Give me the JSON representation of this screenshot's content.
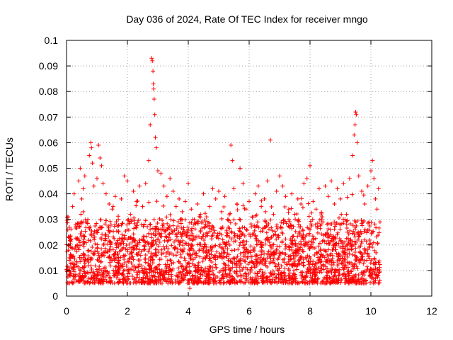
{
  "chart_data": {
    "type": "scatter",
    "title": "Day 036 of 2024, Rate Of TEC Index for receiver mngo",
    "xlabel": "GPS time / hours",
    "ylabel": "ROTI / TECUs",
    "xlim": [
      0,
      12
    ],
    "ylim": [
      0,
      0.1
    ],
    "x_ticks": [
      "0",
      "2",
      "4",
      "6",
      "8",
      "10",
      "12"
    ],
    "y_ticks": [
      "0",
      "0.01",
      "0.02",
      "0.03",
      "0.04",
      "0.05",
      "0.06",
      "0.07",
      "0.08",
      "0.09",
      "0.1"
    ],
    "grid": true,
    "marker": "+",
    "series_color": "#ff0000",
    "data_range_hours": [
      0,
      10.3
    ],
    "baseline_range": [
      0.005,
      0.03
    ],
    "series": [
      {
        "name": "ROTI",
        "points": [
          [
            0.05,
            0.031
          ],
          [
            0.1,
            0.015
          ],
          [
            0.15,
            0.022
          ],
          [
            0.2,
            0.035
          ],
          [
            0.25,
            0.04
          ],
          [
            0.3,
            0.028
          ],
          [
            0.4,
            0.045
          ],
          [
            0.45,
            0.05
          ],
          [
            0.5,
            0.038
          ],
          [
            0.55,
            0.042
          ],
          [
            0.6,
            0.047
          ],
          [
            0.7,
            0.03
          ],
          [
            0.75,
            0.055
          ],
          [
            0.8,
            0.06
          ],
          [
            0.82,
            0.058
          ],
          [
            0.85,
            0.052
          ],
          [
            0.9,
            0.043
          ],
          [
            1.0,
            0.046
          ],
          [
            1.05,
            0.059
          ],
          [
            1.1,
            0.054
          ],
          [
            1.15,
            0.051
          ],
          [
            1.2,
            0.044
          ],
          [
            1.3,
            0.04
          ],
          [
            1.4,
            0.036
          ],
          [
            1.5,
            0.034
          ],
          [
            1.6,
            0.039
          ],
          [
            1.7,
            0.03
          ],
          [
            1.8,
            0.038
          ],
          [
            1.9,
            0.047
          ],
          [
            2.0,
            0.045
          ],
          [
            2.1,
            0.032
          ],
          [
            2.2,
            0.041
          ],
          [
            2.3,
            0.037
          ],
          [
            2.4,
            0.043
          ],
          [
            2.5,
            0.035
          ],
          [
            2.6,
            0.044
          ],
          [
            2.7,
            0.053
          ],
          [
            2.75,
            0.067
          ],
          [
            2.8,
            0.093
          ],
          [
            2.82,
            0.092
          ],
          [
            2.84,
            0.088
          ],
          [
            2.85,
            0.083
          ],
          [
            2.86,
            0.081
          ],
          [
            2.88,
            0.077
          ],
          [
            2.9,
            0.071
          ],
          [
            2.92,
            0.062
          ],
          [
            2.95,
            0.058
          ],
          [
            3.0,
            0.049
          ],
          [
            3.1,
            0.048
          ],
          [
            3.2,
            0.043
          ],
          [
            3.3,
            0.039
          ],
          [
            3.4,
            0.046
          ],
          [
            3.5,
            0.041
          ],
          [
            3.6,
            0.035
          ],
          [
            3.7,
            0.038
          ],
          [
            3.8,
            0.033
          ],
          [
            3.9,
            0.037
          ],
          [
            4.0,
            0.044
          ],
          [
            4.05,
            0.003
          ],
          [
            4.1,
            0.034
          ],
          [
            4.2,
            0.03
          ],
          [
            4.3,
            0.036
          ],
          [
            4.4,
            0.032
          ],
          [
            4.5,
            0.04
          ],
          [
            4.6,
            0.031
          ],
          [
            4.7,
            0.035
          ],
          [
            4.8,
            0.042
          ],
          [
            4.9,
            0.038
          ],
          [
            5.0,
            0.041
          ],
          [
            5.1,
            0.033
          ],
          [
            5.2,
            0.039
          ],
          [
            5.3,
            0.03
          ],
          [
            5.4,
            0.059
          ],
          [
            5.45,
            0.053
          ],
          [
            5.5,
            0.042
          ],
          [
            5.6,
            0.036
          ],
          [
            5.7,
            0.05
          ],
          [
            5.8,
            0.044
          ],
          [
            5.9,
            0.034
          ],
          [
            6.0,
            0.037
          ],
          [
            6.1,
            0.031
          ],
          [
            6.2,
            0.04
          ],
          [
            6.3,
            0.043
          ],
          [
            6.4,
            0.035
          ],
          [
            6.5,
            0.038
          ],
          [
            6.6,
            0.045
          ],
          [
            6.7,
            0.061
          ],
          [
            6.8,
            0.032
          ],
          [
            6.9,
            0.041
          ],
          [
            7.0,
            0.047
          ],
          [
            7.1,
            0.043
          ],
          [
            7.2,
            0.039
          ],
          [
            7.3,
            0.034
          ],
          [
            7.4,
            0.04
          ],
          [
            7.5,
            0.032
          ],
          [
            7.6,
            0.038
          ],
          [
            7.7,
            0.036
          ],
          [
            7.8,
            0.044
          ],
          [
            7.9,
            0.046
          ],
          [
            8.0,
            0.051
          ],
          [
            8.1,
            0.037
          ],
          [
            8.2,
            0.034
          ],
          [
            8.3,
            0.042
          ],
          [
            8.4,
            0.031
          ],
          [
            8.5,
            0.043
          ],
          [
            8.6,
            0.039
          ],
          [
            8.7,
            0.045
          ],
          [
            8.8,
            0.036
          ],
          [
            8.9,
            0.042
          ],
          [
            9.0,
            0.038
          ],
          [
            9.1,
            0.044
          ],
          [
            9.2,
            0.032
          ],
          [
            9.3,
            0.046
          ],
          [
            9.4,
            0.055
          ],
          [
            9.45,
            0.063
          ],
          [
            9.48,
            0.067
          ],
          [
            9.5,
            0.072
          ],
          [
            9.52,
            0.071
          ],
          [
            9.55,
            0.06
          ],
          [
            9.6,
            0.047
          ],
          [
            9.7,
            0.041
          ],
          [
            9.8,
            0.036
          ],
          [
            9.9,
            0.043
          ],
          [
            10.0,
            0.049
          ],
          [
            10.05,
            0.053
          ],
          [
            10.1,
            0.046
          ],
          [
            10.15,
            0.038
          ],
          [
            10.2,
            0.034
          ],
          [
            10.25,
            0.042
          ],
          [
            10.3,
            0.029
          ]
        ]
      }
    ]
  }
}
